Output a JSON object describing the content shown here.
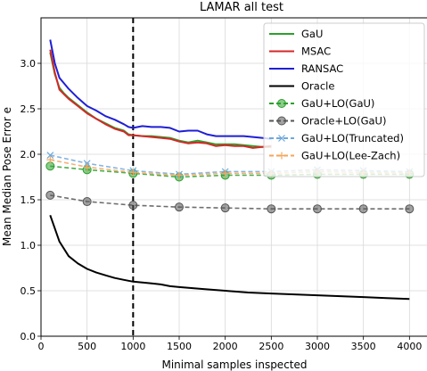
{
  "chart_data": {
    "type": "line",
    "title": "LAMAR all test",
    "xlabel": "Minimal samples inspected",
    "ylabel": "Mean Median Pose Error e",
    "xlim": [
      0,
      4200
    ],
    "ylim": [
      0.0,
      3.5
    ],
    "xticks": [
      0,
      500,
      1000,
      1500,
      2000,
      2500,
      3000,
      3500,
      4000
    ],
    "yticks": [
      0.0,
      0.5,
      1.0,
      1.5,
      2.0,
      2.5,
      3.0
    ],
    "xtick_labels": [
      "0",
      "500",
      "1000",
      "1500",
      "2000",
      "2500",
      "3000",
      "3500",
      "4000"
    ],
    "ytick_labels": [
      "0.0",
      "0.5",
      "1.0",
      "1.5",
      "2.0",
      "2.5",
      "3.0"
    ],
    "grid": true,
    "legend_position": "top-right",
    "vline": {
      "x": 1000,
      "style": "dashed",
      "color": "#000000"
    },
    "series": [
      {
        "name": "GaU",
        "color": "#2ca02c",
        "style": "solid",
        "marker": "none",
        "x": [
          100,
          150,
          200,
          250,
          300,
          400,
          500,
          600,
          700,
          800,
          900,
          950,
          1000,
          1100,
          1200,
          1300,
          1400,
          1500,
          1600,
          1700,
          1800,
          1900,
          2000,
          2100,
          2200,
          2300,
          2400,
          2500
        ],
        "y": [
          3.12,
          2.88,
          2.73,
          2.67,
          2.62,
          2.54,
          2.46,
          2.39,
          2.34,
          2.29,
          2.26,
          2.22,
          2.21,
          2.2,
          2.2,
          2.19,
          2.18,
          2.15,
          2.13,
          2.15,
          2.13,
          2.11,
          2.11,
          2.11,
          2.1,
          2.09,
          2.08,
          2.08
        ]
      },
      {
        "name": "MSAC",
        "color": "#d62728",
        "style": "solid",
        "marker": "none",
        "x": [
          100,
          150,
          200,
          250,
          300,
          400,
          500,
          600,
          700,
          800,
          900,
          950,
          1000,
          1100,
          1200,
          1300,
          1400,
          1500,
          1600,
          1700,
          1800,
          1900,
          2000,
          2100,
          2200,
          2300,
          2400,
          2500
        ],
        "y": [
          3.15,
          2.9,
          2.71,
          2.66,
          2.61,
          2.53,
          2.45,
          2.39,
          2.33,
          2.28,
          2.25,
          2.21,
          2.21,
          2.2,
          2.19,
          2.18,
          2.17,
          2.14,
          2.12,
          2.13,
          2.12,
          2.09,
          2.1,
          2.09,
          2.09,
          2.07,
          2.08,
          2.09
        ]
      },
      {
        "name": "RANSAC",
        "color": "#1f1fd6",
        "style": "solid",
        "marker": "none",
        "x": [
          100,
          150,
          200,
          250,
          300,
          400,
          500,
          600,
          700,
          800,
          900,
          950,
          1000,
          1100,
          1200,
          1300,
          1400,
          1500,
          1600,
          1700,
          1800,
          1900,
          2000,
          2100,
          2200,
          2300,
          2400,
          2500
        ],
        "y": [
          3.26,
          3.0,
          2.84,
          2.78,
          2.72,
          2.62,
          2.53,
          2.48,
          2.42,
          2.38,
          2.33,
          2.3,
          2.29,
          2.31,
          2.3,
          2.3,
          2.29,
          2.25,
          2.26,
          2.26,
          2.22,
          2.2,
          2.2,
          2.2,
          2.2,
          2.19,
          2.18,
          2.17
        ]
      },
      {
        "name": "Oracle",
        "color": "#000000",
        "style": "solid",
        "marker": "none",
        "x": [
          100,
          200,
          300,
          400,
          500,
          600,
          700,
          800,
          900,
          1000,
          1100,
          1200,
          1300,
          1400,
          1500,
          1750,
          2000,
          2250,
          2500,
          2750,
          3000,
          3250,
          3500,
          3750,
          4000
        ],
        "y": [
          1.33,
          1.04,
          0.88,
          0.8,
          0.74,
          0.7,
          0.67,
          0.64,
          0.62,
          0.6,
          0.59,
          0.58,
          0.57,
          0.55,
          0.54,
          0.52,
          0.5,
          0.48,
          0.47,
          0.46,
          0.45,
          0.44,
          0.43,
          0.42,
          0.41
        ]
      },
      {
        "name": "GaU+LO(GaU)",
        "color": "#2ca02c",
        "style": "dashed",
        "marker": "circle",
        "x": [
          100,
          500,
          1000,
          1500,
          2000,
          2500,
          3000,
          3500,
          4000
        ],
        "y": [
          1.87,
          1.83,
          1.79,
          1.75,
          1.77,
          1.77,
          1.78,
          1.78,
          1.78
        ]
      },
      {
        "name": "Oracle+LO(GaU)",
        "color": "#555555",
        "style": "dashed",
        "marker": "circle",
        "x": [
          100,
          500,
          1000,
          1500,
          2000,
          2500,
          3000,
          3500,
          4000
        ],
        "y": [
          1.55,
          1.48,
          1.44,
          1.42,
          1.41,
          1.4,
          1.4,
          1.4,
          1.4
        ]
      },
      {
        "name": "GaU+LO(Truncated)",
        "color": "#6fa8dc",
        "style": "dashed",
        "marker": "x",
        "x": [
          100,
          500,
          1000,
          1500,
          2000,
          2500,
          3000,
          3500,
          4000
        ],
        "y": [
          1.99,
          1.9,
          1.82,
          1.78,
          1.81,
          1.81,
          1.83,
          1.82,
          1.81
        ]
      },
      {
        "name": "GaU+LO(Lee-Zach)",
        "color": "#f5a55a",
        "style": "dashed",
        "marker": "plus",
        "x": [
          100,
          500,
          1000,
          1500,
          2000,
          2500,
          3000,
          3500,
          4000
        ],
        "y": [
          1.94,
          1.86,
          1.8,
          1.77,
          1.79,
          1.79,
          1.81,
          1.8,
          1.8
        ]
      }
    ]
  }
}
